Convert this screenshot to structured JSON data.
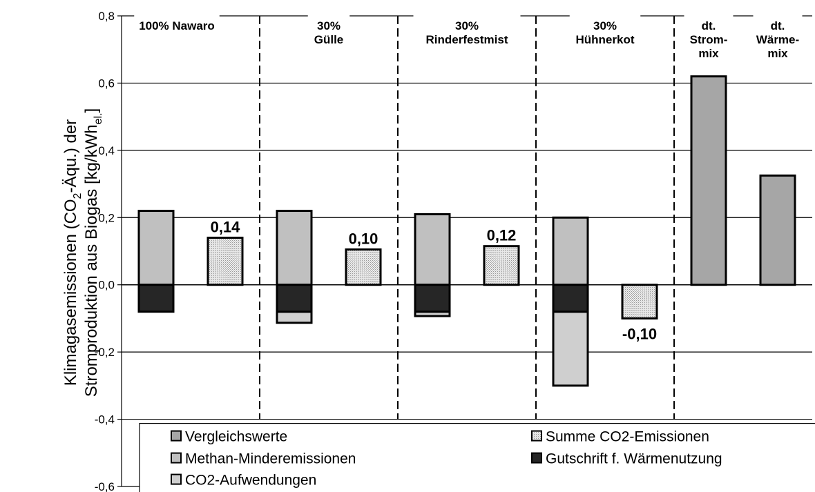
{
  "chart_data": {
    "type": "bar",
    "ylabel_line1": "Klimagasemissionen (CO",
    "ylabel_sub1": "2",
    "ylabel_line1b": "-Äqu.) der",
    "ylabel_line2": "Stromproduktion aus Biogas [kg/kWh",
    "ylabel_sub2": "el.",
    "ylabel_line2b": "]",
    "ylim": [
      -0.6,
      0.8
    ],
    "ticks": [
      0.8,
      0.6,
      0.4,
      0.2,
      0.0,
      -0.2,
      -0.4,
      -0.6
    ],
    "tick_labels": [
      "0,8",
      "0,6",
      "0,4",
      "0,2",
      "0,0",
      "-0,2",
      "-0,4",
      "-0,6"
    ],
    "grid": true,
    "legend_placement": "bottom",
    "groups": [
      {
        "lines": [
          "100% Nawaro"
        ]
      },
      {
        "lines": [
          "30%",
          "Gülle"
        ]
      },
      {
        "lines": [
          "30%",
          "Rinderfestmist"
        ]
      },
      {
        "lines": [
          "30%",
          "Hühnerkot"
        ]
      },
      {
        "lines": [
          "dt.",
          "Strom-",
          "mix"
        ]
      },
      {
        "lines": [
          "dt.",
          "Wärme-",
          "mix"
        ]
      }
    ],
    "stacked": [
      {
        "group": 0,
        "methan": 0.22,
        "gutschrift": -0.08,
        "co2": 0.0
      },
      {
        "group": 1,
        "methan": 0.22,
        "gutschrift": -0.08,
        "co2": -0.033
      },
      {
        "group": 2,
        "methan": 0.21,
        "gutschrift": -0.08,
        "co2": -0.013
      },
      {
        "group": 3,
        "methan": 0.2,
        "gutschrift": -0.08,
        "co2": -0.22
      }
    ],
    "sums": [
      {
        "group": 0,
        "value": 0.14,
        "label": "0,14"
      },
      {
        "group": 1,
        "value": 0.105,
        "label": "0,10"
      },
      {
        "group": 2,
        "value": 0.115,
        "label": "0,12"
      },
      {
        "group": 3,
        "value": -0.1,
        "label": "-0,10"
      }
    ],
    "vergleich": [
      {
        "group": 4,
        "value": 0.62
      },
      {
        "group": 5,
        "value": 0.325
      }
    ],
    "legend": [
      {
        "key": "vergleich",
        "label": "Vergleichswerte",
        "color": "#a6a6a6"
      },
      {
        "key": "summe",
        "label": "Summe CO2-Emissionen",
        "color": "#dedede"
      },
      {
        "key": "methan",
        "label": "Methan-Minderemissionen",
        "color": "#c0c0c0"
      },
      {
        "key": "gutschrift",
        "label": "Gutschrift f. Wärmenutzung",
        "color": "#262626"
      },
      {
        "key": "co2",
        "label": "CO2-Aufwendungen",
        "color": "#cfcfcf"
      }
    ]
  }
}
